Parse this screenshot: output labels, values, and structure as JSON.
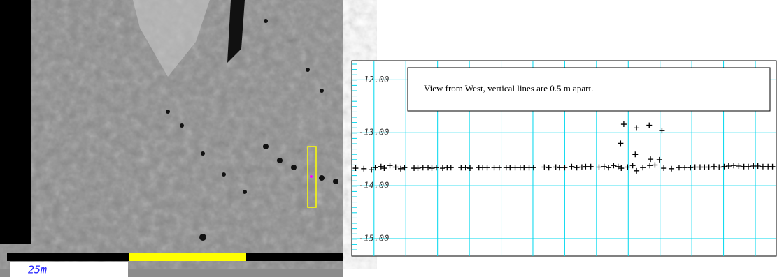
{
  "image_panel": {
    "scale_label": "25m"
  },
  "chart_data": {
    "type": "scatter",
    "annotation": "View from West, vertical lines are 0.5 m apart.",
    "x": [
      -0.29,
      -0.16,
      -0.04,
      0.02,
      0.11,
      0.16,
      0.25,
      0.34,
      0.42,
      0.48,
      0.63,
      0.69,
      0.77,
      0.85,
      0.91,
      0.98,
      1.08,
      1.15,
      1.21,
      1.37,
      1.44,
      1.51,
      1.65,
      1.71,
      1.78,
      1.89,
      1.97,
      2.08,
      2.14,
      2.22,
      2.3,
      2.36,
      2.44,
      2.51,
      2.68,
      2.75,
      2.86,
      2.92,
      3.0,
      3.11,
      3.19,
      3.27,
      3.33,
      3.41,
      3.54,
      3.62,
      3.69,
      3.77,
      3.84,
      3.89,
      3.99,
      4.07,
      4.13,
      4.23,
      4.34,
      4.42,
      4.56,
      4.68,
      4.8,
      4.89,
      4.98,
      5.05,
      5.13,
      5.2,
      5.27,
      5.35,
      5.43,
      5.51,
      5.58,
      5.66,
      5.74,
      5.82,
      5.89,
      5.97,
      6.04,
      6.12,
      6.2,
      6.27,
      3.93,
      4.13,
      4.33,
      4.53,
      3.88,
      4.11,
      4.35,
      4.49
    ],
    "series": [
      {
        "color": "#000000",
        "values": [
          -13.67,
          -13.68,
          -13.7,
          -13.66,
          -13.64,
          -13.67,
          -13.62,
          -13.65,
          -13.68,
          -13.66,
          -13.67,
          -13.67,
          -13.66,
          -13.66,
          -13.67,
          -13.66,
          -13.67,
          -13.66,
          -13.66,
          -13.66,
          -13.66,
          -13.67,
          -13.66,
          -13.66,
          -13.66,
          -13.66,
          -13.66,
          -13.66,
          -13.66,
          -13.66,
          -13.66,
          -13.66,
          -13.66,
          -13.66,
          -13.65,
          -13.66,
          -13.65,
          -13.66,
          -13.66,
          -13.64,
          -13.66,
          -13.65,
          -13.64,
          -13.64,
          -13.65,
          -13.64,
          -13.66,
          -13.62,
          -13.64,
          -13.67,
          -13.65,
          -13.62,
          -13.72,
          -13.66,
          -13.62,
          -13.61,
          -13.67,
          -13.68,
          -13.66,
          -13.66,
          -13.66,
          -13.65,
          -13.65,
          -13.65,
          -13.65,
          -13.64,
          -13.65,
          -13.64,
          -13.63,
          -13.62,
          -13.63,
          -13.64,
          -13.64,
          -13.63,
          -13.63,
          -13.64,
          -13.64,
          -13.64,
          -12.84,
          -12.91,
          -12.86,
          -12.96,
          -13.2,
          -13.41,
          -13.5,
          -13.51
        ]
      }
    ],
    "xlim": [
      -0.35,
      6.33
    ],
    "xticks": [
      0,
      0.5,
      1,
      1.5,
      2,
      2.5,
      3,
      3.5,
      4,
      4.5,
      5,
      5.5,
      6
    ],
    "ylim": [
      -15.33,
      -11.64
    ],
    "yticks": [
      {
        "value": -12,
        "label": "-12.00"
      },
      {
        "value": -13,
        "label": "-13.00"
      },
      {
        "value": -14,
        "label": "-14.00"
      },
      {
        "value": -15,
        "label": "-15.00"
      }
    ],
    "grid": true,
    "grid_color": "#00d8ee"
  }
}
